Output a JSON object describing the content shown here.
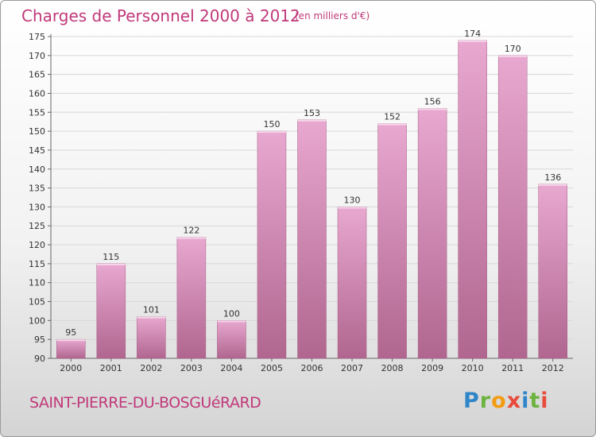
{
  "header": {
    "title": "Charges de Personnel 2000 à 2012",
    "subtitle": "(en milliers d'€)"
  },
  "footer": {
    "commune": "SAINT-PIERRE-DU-BOSGUéRARD",
    "logo_letters": [
      "P",
      "r",
      "o",
      "x",
      "i",
      "t",
      "i"
    ]
  },
  "colors": {
    "bar_light": "#e8a8d0",
    "bar_dark": "#b0668f",
    "accent": "#c0397a"
  },
  "chart_data": {
    "type": "bar",
    "categories": [
      "2000",
      "2001",
      "2002",
      "2003",
      "2004",
      "2005",
      "2006",
      "2007",
      "2008",
      "2009",
      "2010",
      "2011",
      "2012"
    ],
    "values": [
      95,
      115,
      101,
      122,
      100,
      150,
      153,
      130,
      152,
      156,
      174,
      170,
      136
    ],
    "ylim": [
      90,
      175
    ],
    "yticks": [
      90,
      95,
      100,
      105,
      110,
      115,
      120,
      125,
      130,
      135,
      140,
      145,
      150,
      155,
      160,
      165,
      170,
      175
    ],
    "grid": true
  }
}
